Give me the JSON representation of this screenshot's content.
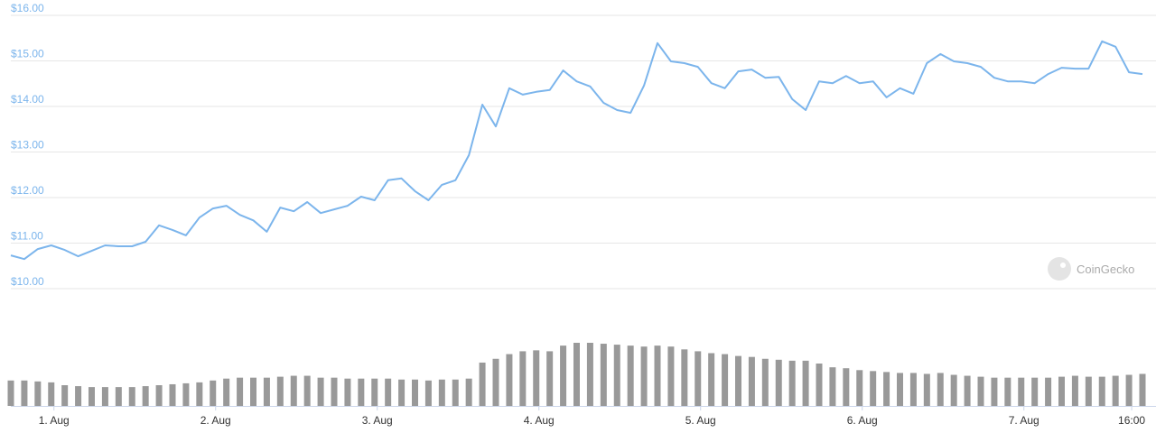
{
  "chart_data": [
    {
      "type": "line",
      "color": "#7cb5ec",
      "watermark": "CoinGecko",
      "xlim": [
        0,
        84
      ],
      "ylim": [
        10,
        16
      ],
      "yticks": [
        {
          "value": 10,
          "label": "$10.00"
        },
        {
          "value": 11,
          "label": "$11.00"
        },
        {
          "value": 12,
          "label": "$12.00"
        },
        {
          "value": 13,
          "label": "$13.00"
        },
        {
          "value": 14,
          "label": "$14.00"
        },
        {
          "value": 15,
          "label": "$15.00"
        },
        {
          "value": 16,
          "label": "$16.00"
        }
      ],
      "grid": true,
      "values": [
        10.73,
        10.65,
        10.87,
        10.95,
        10.85,
        10.71,
        10.83,
        10.95,
        10.93,
        10.93,
        11.03,
        11.39,
        11.29,
        11.17,
        11.56,
        11.76,
        11.82,
        11.62,
        11.5,
        11.25,
        11.78,
        11.7,
        11.9,
        11.66,
        11.74,
        11.82,
        12.02,
        11.94,
        12.38,
        12.42,
        12.14,
        11.94,
        12.28,
        12.38,
        12.93,
        14.04,
        13.56,
        14.4,
        14.26,
        14.32,
        14.36,
        14.79,
        14.55,
        14.44,
        14.08,
        13.92,
        13.86,
        14.46,
        15.39,
        14.99,
        14.95,
        14.87,
        14.51,
        14.4,
        14.77,
        14.81,
        14.63,
        14.65,
        14.16,
        13.92,
        14.55,
        14.51,
        14.67,
        14.51,
        14.55,
        14.2,
        14.4,
        14.28,
        14.95,
        15.15,
        14.99,
        14.95,
        14.87,
        14.63,
        14.55,
        14.55,
        14.51,
        14.71,
        14.85,
        14.83,
        14.83,
        15.43,
        15.31,
        14.75,
        14.71
      ]
    },
    {
      "type": "bar",
      "color": "#999999",
      "xlim": [
        0,
        84
      ],
      "xticks": [
        {
          "value": 3.2,
          "label": "1. Aug"
        },
        {
          "value": 15.2,
          "label": "2. Aug"
        },
        {
          "value": 27.2,
          "label": "3. Aug"
        },
        {
          "value": 39.2,
          "label": "4. Aug"
        },
        {
          "value": 51.2,
          "label": "5. Aug"
        },
        {
          "value": 63.2,
          "label": "6. Aug"
        },
        {
          "value": 75.2,
          "label": "7. Aug"
        },
        {
          "value": 83.2,
          "label": "16:00"
        }
      ],
      "values": [
        27,
        27,
        26,
        25,
        22,
        21,
        20,
        20,
        20,
        20,
        21,
        22,
        23,
        24,
        25,
        27,
        29,
        30,
        30,
        30,
        31,
        32,
        32,
        30,
        30,
        29,
        29,
        29,
        29,
        28,
        28,
        27,
        28,
        28,
        29,
        46,
        50,
        55,
        58,
        59,
        58,
        64,
        67,
        67,
        66,
        65,
        64,
        63,
        64,
        63,
        60,
        58,
        56,
        55,
        53,
        52,
        50,
        49,
        48,
        48,
        45,
        41,
        40,
        38,
        37,
        36,
        35,
        35,
        34,
        35,
        33,
        32,
        31,
        30,
        30,
        30,
        30,
        30,
        31,
        32,
        31,
        31,
        32,
        33,
        34
      ]
    }
  ]
}
